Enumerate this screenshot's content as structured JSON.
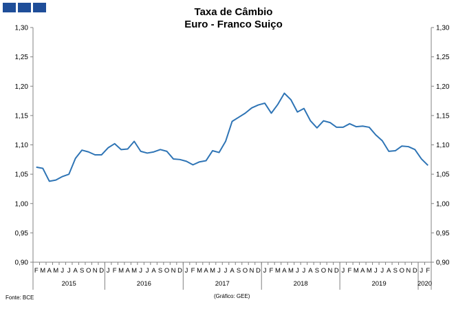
{
  "logo": {
    "icon": "three-blue-squares-icon",
    "color": "#1f4e99"
  },
  "header": {
    "title_line1": "Taxa de Câmbio",
    "title_line2": "Euro - Franco Suiço"
  },
  "footer": {
    "source": "Fonte: BCE",
    "credit": "(Gráfico: GEE)"
  },
  "chart_data": {
    "type": "line",
    "title": "Taxa de Câmbio Euro - Franco Suiço",
    "ylim": [
      0.9,
      1.3
    ],
    "yticks": [
      "0,90",
      "0,95",
      "1,00",
      "1,05",
      "1,10",
      "1,15",
      "1,20",
      "1,25",
      "1,30"
    ],
    "month_labels": [
      "F",
      "M",
      "A",
      "M",
      "J",
      "J",
      "A",
      "S",
      "O",
      "N",
      "D",
      "J",
      "F",
      "M",
      "A",
      "M",
      "J",
      "J",
      "A",
      "S",
      "O",
      "N",
      "D",
      "J",
      "F",
      "M",
      "A",
      "M",
      "J",
      "J",
      "A",
      "S",
      "O",
      "N",
      "D",
      "J",
      "F",
      "M",
      "A",
      "M",
      "J",
      "J",
      "A",
      "S",
      "O",
      "N",
      "D",
      "J",
      "F",
      "M",
      "A",
      "M",
      "J",
      "J",
      "A",
      "S",
      "O",
      "N",
      "D",
      "J",
      "F"
    ],
    "years": [
      {
        "label": "2015",
        "start": 0,
        "count": 11
      },
      {
        "label": "2016",
        "start": 11,
        "count": 12
      },
      {
        "label": "2017",
        "start": 23,
        "count": 12
      },
      {
        "label": "2018",
        "start": 35,
        "count": 12
      },
      {
        "label": "2019",
        "start": 47,
        "count": 12
      },
      {
        "label": "2020",
        "start": 59,
        "count": 2
      }
    ],
    "grid": false,
    "line_color": "#2e74b5",
    "series": [
      {
        "values": [
          1.062,
          1.06,
          1.038,
          1.04,
          1.046,
          1.05,
          1.077,
          1.091,
          1.088,
          1.083,
          1.083,
          1.095,
          1.102,
          1.092,
          1.093,
          1.106,
          1.089,
          1.086,
          1.088,
          1.092,
          1.089,
          1.076,
          1.075,
          1.072,
          1.066,
          1.071,
          1.073,
          1.09,
          1.087,
          1.106,
          1.14,
          1.147,
          1.154,
          1.163,
          1.168,
          1.171,
          1.154,
          1.169,
          1.188,
          1.177,
          1.156,
          1.162,
          1.141,
          1.129,
          1.141,
          1.138,
          1.13,
          1.13,
          1.136,
          1.131,
          1.132,
          1.13,
          1.117,
          1.107,
          1.089,
          1.09,
          1.098,
          1.097,
          1.092,
          1.076,
          1.065
        ]
      }
    ]
  }
}
